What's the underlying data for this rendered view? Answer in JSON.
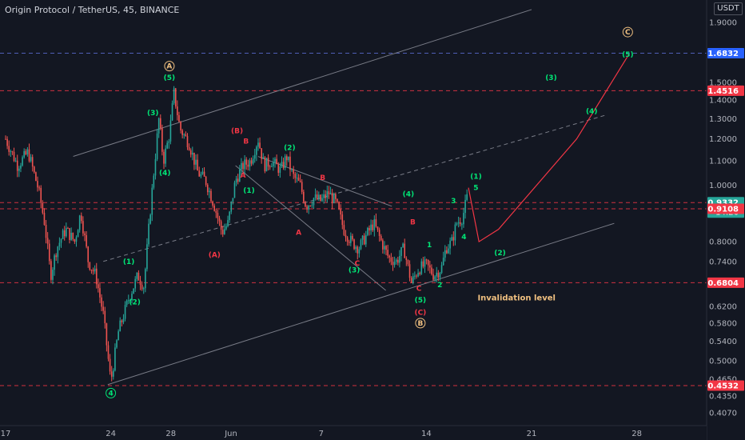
{
  "header": {
    "symbol_title": "Origin Protocol / TetherUS, 45, BINANCE",
    "currency": "USDT"
  },
  "chart_data": {
    "type": "candlestick",
    "symbol": "Origin Protocol / TetherUS",
    "interval": "45",
    "exchange": "BINANCE",
    "scale": "log",
    "y_ticks": [
      1.9,
      1.5,
      1.4,
      1.3,
      1.2,
      1.1,
      1.0,
      0.9,
      0.8,
      0.74,
      0.62,
      0.58,
      0.54,
      0.5,
      0.465,
      0.435,
      0.407
    ],
    "y_tick_labels": [
      "1.9000",
      "1.5000",
      "1.4000",
      "1.3000",
      "1.2000",
      "1.1000",
      "1.0000",
      "0.9000",
      "0.8000",
      "0.7400",
      "0.6200",
      "0.5800",
      "0.5400",
      "0.5000",
      "0.4650",
      "0.4350",
      "0.4070"
    ],
    "x_ticks": [
      {
        "t": 17,
        "label": "17"
      },
      {
        "t": 24,
        "label": "24"
      },
      {
        "t": 28,
        "label": "28"
      },
      {
        "t": 32,
        "label": "Jun"
      },
      {
        "t": 38,
        "label": "7"
      },
      {
        "t": 45,
        "label": "14"
      },
      {
        "t": 52,
        "label": "21"
      },
      {
        "t": 59,
        "label": "28"
      }
    ],
    "price_marks": [
      {
        "value": 1.6832,
        "label": "1.6832",
        "color": "#2962ff",
        "line_color": "#5b6bd0"
      },
      {
        "value": 1.4516,
        "label": "1.4516",
        "color": "#f23645",
        "line_color": "#f23645"
      },
      {
        "value": 0.9332,
        "label": "0.9332",
        "sub": "14:26",
        "color": "#26a69a",
        "line_color": "#f23645"
      },
      {
        "value": 0.9108,
        "label": "0.9108",
        "color": "#f23645",
        "line_color": "#f23645"
      },
      {
        "value": 0.6804,
        "label": "0.6804",
        "color": "#f23645",
        "line_color": "#f23645"
      },
      {
        "value": 0.4532,
        "label": "0.4532",
        "color": "#f23645",
        "line_color": "#f23645"
      }
    ],
    "price_path": [
      [
        17.0,
        1.2
      ],
      [
        17.8,
        1.08
      ],
      [
        18.5,
        1.14
      ],
      [
        19.2,
        0.98
      ],
      [
        19.6,
        0.86
      ],
      [
        20.0,
        0.7
      ],
      [
        20.4,
        0.78
      ],
      [
        21.0,
        0.84
      ],
      [
        21.6,
        0.8
      ],
      [
        22.0,
        0.9
      ],
      [
        22.5,
        0.74
      ],
      [
        23.0,
        0.7
      ],
      [
        23.5,
        0.6
      ],
      [
        24.0,
        0.46
      ],
      [
        24.5,
        0.56
      ],
      [
        25.2,
        0.64
      ],
      [
        25.8,
        0.7
      ],
      [
        26.2,
        0.67
      ],
      [
        26.7,
        0.95
      ],
      [
        27.2,
        1.3
      ],
      [
        27.5,
        1.1
      ],
      [
        27.9,
        1.22
      ],
      [
        28.2,
        1.44
      ],
      [
        28.6,
        1.25
      ],
      [
        29.2,
        1.18
      ],
      [
        29.8,
        1.05
      ],
      [
        30.3,
        1.02
      ],
      [
        30.9,
        0.92
      ],
      [
        31.4,
        0.83
      ],
      [
        31.8,
        0.86
      ],
      [
        32.3,
        1.02
      ],
      [
        32.8,
        1.08
      ],
      [
        33.3,
        1.1
      ],
      [
        33.8,
        1.2
      ],
      [
        34.2,
        1.08
      ],
      [
        34.7,
        1.1
      ],
      [
        35.3,
        1.06
      ],
      [
        35.7,
        1.12
      ],
      [
        36.1,
        1.04
      ],
      [
        36.6,
        1.0
      ],
      [
        37.0,
        0.92
      ],
      [
        37.5,
        0.95
      ],
      [
        38.0,
        0.94
      ],
      [
        38.5,
        0.97
      ],
      [
        39.0,
        0.93
      ],
      [
        39.5,
        0.84
      ],
      [
        40.0,
        0.8
      ],
      [
        40.5,
        0.78
      ],
      [
        41.0,
        0.82
      ],
      [
        41.5,
        0.86
      ],
      [
        42.0,
        0.8
      ],
      [
        42.5,
        0.75
      ],
      [
        43.0,
        0.74
      ],
      [
        43.5,
        0.78
      ],
      [
        44.0,
        0.68
      ],
      [
        44.5,
        0.72
      ],
      [
        45.0,
        0.73
      ],
      [
        45.5,
        0.7
      ],
      [
        46.0,
        0.72
      ],
      [
        46.3,
        0.78
      ],
      [
        46.7,
        0.8
      ],
      [
        47.0,
        0.86
      ],
      [
        47.4,
        0.88
      ],
      [
        47.7,
        0.95
      ]
    ],
    "projection": [
      [
        47.8,
        0.99
      ],
      [
        48.5,
        0.8
      ],
      [
        49.8,
        0.84
      ],
      [
        55,
        1.2
      ],
      [
        58.5,
        1.68
      ]
    ],
    "trendlines": {
      "channel_top": [
        [
          21.5,
          1.12
        ],
        [
          52,
          2.0
        ]
      ],
      "channel_mid": [
        [
          23.5,
          0.74
        ],
        [
          57,
          1.32
        ]
      ],
      "channel_bottom": [
        [
          23.8,
          0.455
        ],
        [
          57.5,
          0.86
        ]
      ],
      "wedge_top": [
        [
          33.8,
          1.12
        ],
        [
          42.7,
          0.92
        ]
      ],
      "wedge_bottom": [
        [
          32.3,
          1.08
        ],
        [
          42.3,
          0.66
        ]
      ]
    },
    "wave_labels": [
      {
        "text": "A",
        "t": 27.9,
        "v": 1.6,
        "color": "#f0c080",
        "circle": true
      },
      {
        "text": "(5)",
        "t": 27.9,
        "v": 1.53,
        "color": "#00e676"
      },
      {
        "text": "(3)",
        "t": 26.8,
        "v": 1.33,
        "color": "#00e676"
      },
      {
        "text": "(4)",
        "t": 27.6,
        "v": 1.05,
        "color": "#00e676"
      },
      {
        "text": "(1)",
        "t": 25.2,
        "v": 0.74,
        "color": "#00e676"
      },
      {
        "text": "(2)",
        "t": 25.6,
        "v": 0.63,
        "color": "#00e676"
      },
      {
        "text": "4",
        "t": 24.0,
        "v": 0.44,
        "color": "#00e676",
        "circle": true
      },
      {
        "text": "(A)",
        "t": 30.9,
        "v": 0.76,
        "color": "#f23645"
      },
      {
        "text": "(B)",
        "t": 32.4,
        "v": 1.24,
        "color": "#f23645"
      },
      {
        "text": "B",
        "t": 33.0,
        "v": 1.19,
        "color": "#f23645"
      },
      {
        "text": "A",
        "t": 32.8,
        "v": 1.04,
        "color": "#f23645"
      },
      {
        "text": "(2)",
        "t": 35.9,
        "v": 1.16,
        "color": "#00e676"
      },
      {
        "text": "(1)",
        "t": 33.2,
        "v": 0.98,
        "color": "#00e676"
      },
      {
        "text": "B",
        "t": 38.1,
        "v": 1.03,
        "color": "#f23645"
      },
      {
        "text": "A",
        "t": 36.5,
        "v": 0.83,
        "color": "#f23645"
      },
      {
        "text": "C",
        "t": 40.4,
        "v": 0.735,
        "color": "#f23645"
      },
      {
        "text": "(3)",
        "t": 40.2,
        "v": 0.715,
        "color": "#00e676"
      },
      {
        "text": "(4)",
        "t": 43.8,
        "v": 0.965,
        "color": "#00e676"
      },
      {
        "text": "B",
        "t": 44.1,
        "v": 0.865,
        "color": "#f23645"
      },
      {
        "text": "C",
        "t": 44.5,
        "v": 0.665,
        "color": "#f23645"
      },
      {
        "text": "(5)",
        "t": 44.6,
        "v": 0.635,
        "color": "#00e676"
      },
      {
        "text": "(C)",
        "t": 44.6,
        "v": 0.605,
        "color": "#f23645"
      },
      {
        "text": "B",
        "t": 44.6,
        "v": 0.58,
        "color": "#f0c080",
        "circle": true
      },
      {
        "text": "1",
        "t": 45.2,
        "v": 0.79,
        "color": "#00e676"
      },
      {
        "text": "2",
        "t": 45.9,
        "v": 0.675,
        "color": "#00e676"
      },
      {
        "text": "3",
        "t": 46.8,
        "v": 0.94,
        "color": "#00e676"
      },
      {
        "text": "4",
        "t": 47.5,
        "v": 0.815,
        "color": "#00e676"
      },
      {
        "text": "(1)",
        "t": 48.3,
        "v": 1.035,
        "color": "#00e676"
      },
      {
        "text": "5",
        "t": 48.3,
        "v": 0.99,
        "color": "#00e676"
      },
      {
        "text": "(2)",
        "t": 49.9,
        "v": 0.765,
        "color": "#00e676"
      },
      {
        "text": "(3)",
        "t": 53.3,
        "v": 1.53,
        "color": "#00e676"
      },
      {
        "text": "(4)",
        "t": 56.0,
        "v": 1.34,
        "color": "#00e676"
      },
      {
        "text": "(5)",
        "t": 58.4,
        "v": 1.675,
        "color": "#00e676"
      },
      {
        "text": "C",
        "t": 58.4,
        "v": 1.83,
        "color": "#f0c080",
        "circle": true
      }
    ],
    "annotations": [
      {
        "text": "Invalidation level",
        "t": 51.0,
        "v": 0.64,
        "color": "#f0c080"
      }
    ]
  }
}
